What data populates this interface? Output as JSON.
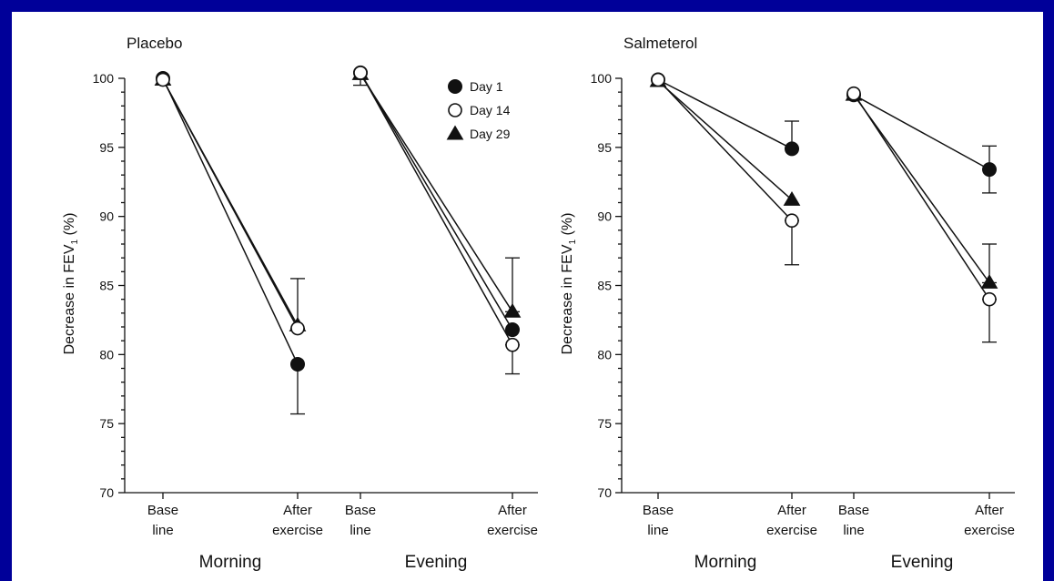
{
  "chart_data": [
    {
      "type": "line",
      "title": "Placebo",
      "ylabel": "Decrease in FEV",
      "ylabel_subscript": "1",
      "ylabel_suffix": " (%)",
      "ylim": [
        70,
        100
      ],
      "yticks": [
        70,
        75,
        80,
        85,
        90,
        95,
        100
      ],
      "grid": false,
      "legend": {
        "placement": "top-right",
        "entries": [
          {
            "label": "Day 1",
            "marker": "filled-circle"
          },
          {
            "label": "Day 14",
            "marker": "open-circle"
          },
          {
            "label": "Day 29",
            "marker": "filled-triangle"
          }
        ]
      },
      "groups": [
        {
          "label": "Morning",
          "categories": [
            [
              "Base",
              "line"
            ],
            [
              "After",
              "exercise"
            ]
          ]
        },
        {
          "label": "Evening",
          "categories": [
            [
              "Base",
              "line"
            ],
            [
              "After",
              "exercise"
            ]
          ]
        }
      ],
      "series": [
        {
          "name": "Day 1",
          "marker": "filled-circle",
          "morning": [
            100,
            79.3
          ],
          "evening": [
            100.4,
            81.8
          ],
          "error_bars": [
            {
              "group": 0,
              "point": 1,
              "low": 75.7,
              "high": 79.3
            },
            {
              "group": 1,
              "point": 0,
              "low": 99.5,
              "high": 100.4
            }
          ]
        },
        {
          "name": "Day 14",
          "marker": "open-circle",
          "morning": [
            99.9,
            81.9
          ],
          "evening": [
            100.4,
            80.7
          ],
          "error_bars": [
            {
              "group": 0,
              "point": 1,
              "low": 81.9,
              "high": 85.5
            },
            {
              "group": 1,
              "point": 1,
              "low": 78.6,
              "high": 80.7
            }
          ]
        },
        {
          "name": "Day 29",
          "marker": "filled-triangle",
          "morning": [
            99.9,
            82.1
          ],
          "evening": [
            100.3,
            83.1
          ],
          "error_bars": [
            {
              "group": 1,
              "point": 1,
              "low": 83.1,
              "high": 87.0
            }
          ]
        }
      ]
    },
    {
      "type": "line",
      "title": "Salmeterol",
      "ylabel": "Decrease in FEV",
      "ylabel_subscript": "1",
      "ylabel_suffix": " (%)",
      "ylim": [
        70,
        100
      ],
      "yticks": [
        70,
        75,
        80,
        85,
        90,
        95,
        100
      ],
      "grid": false,
      "groups": [
        {
          "label": "Morning",
          "categories": [
            [
              "Base",
              "line"
            ],
            [
              "After",
              "exercise"
            ]
          ]
        },
        {
          "label": "Evening",
          "categories": [
            [
              "Base",
              "line"
            ],
            [
              "After",
              "exercise"
            ]
          ]
        }
      ],
      "series": [
        {
          "name": "Day 1",
          "marker": "filled-circle",
          "morning": [
            99.9,
            94.9
          ],
          "evening": [
            98.8,
            93.4
          ],
          "error_bars": [
            {
              "group": 0,
              "point": 1,
              "low": 94.9,
              "high": 96.9
            },
            {
              "group": 1,
              "point": 1,
              "low": 91.7,
              "high": 95.1
            }
          ]
        },
        {
          "name": "Day 14",
          "marker": "open-circle",
          "morning": [
            99.9,
            89.7
          ],
          "evening": [
            98.9,
            84.0
          ],
          "error_bars": [
            {
              "group": 0,
              "point": 1,
              "low": 86.5,
              "high": 89.7
            },
            {
              "group": 1,
              "point": 1,
              "low": 80.9,
              "high": 84.0
            }
          ]
        },
        {
          "name": "Day 29",
          "marker": "filled-triangle",
          "morning": [
            99.8,
            91.2
          ],
          "evening": [
            98.8,
            85.2
          ],
          "error_bars": [
            {
              "group": 1,
              "point": 1,
              "low": 85.2,
              "high": 88.0
            }
          ]
        }
      ]
    }
  ]
}
